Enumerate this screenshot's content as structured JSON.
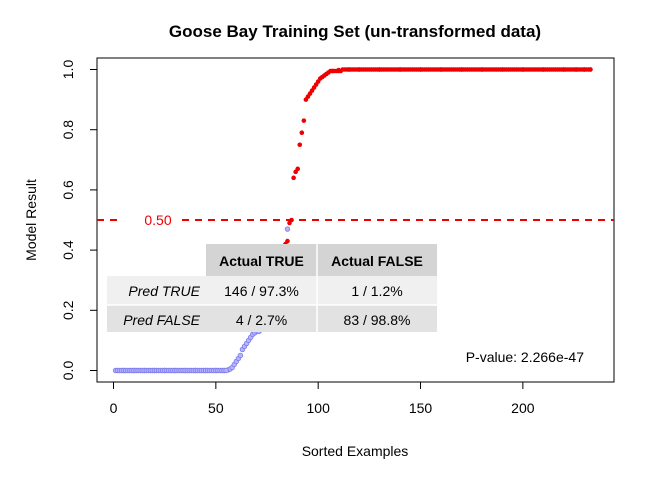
{
  "chart_data": {
    "type": "scatter",
    "title": "Goose Bay Training Set (un-transformed data)",
    "xlabel": "Sorted Examples",
    "ylabel": "Model Result",
    "xlim": [
      0,
      235
    ],
    "ylim": [
      0,
      1
    ],
    "x_ticks": [
      0,
      50,
      100,
      150,
      200
    ],
    "y_ticks": [
      0.0,
      0.2,
      0.4,
      0.6,
      0.8,
      1.0
    ],
    "y_tick_labels": [
      "0.0",
      "0.2",
      "0.4",
      "0.6",
      "0.8",
      "1.0"
    ],
    "threshold": {
      "value": 0.5,
      "label": "0.50",
      "color": "#ee0000"
    },
    "colors": {
      "false_class": "#7b7bee",
      "true_class": "#ee0000"
    },
    "grid": false,
    "legend": "none",
    "false_points": [
      [
        1,
        0
      ],
      [
        5,
        0
      ],
      [
        10,
        0
      ],
      [
        15,
        0
      ],
      [
        20,
        0
      ],
      [
        25,
        0
      ],
      [
        30,
        0
      ],
      [
        35,
        0
      ],
      [
        40,
        0
      ],
      [
        45,
        0
      ],
      [
        50,
        0
      ],
      [
        54,
        0
      ],
      [
        56,
        0.002
      ],
      [
        57,
        0.005
      ],
      [
        58,
        0.01
      ],
      [
        59,
        0.02
      ],
      [
        60,
        0.03
      ],
      [
        61,
        0.04
      ],
      [
        62,
        0.05
      ],
      [
        63,
        0.07
      ],
      [
        64,
        0.08
      ],
      [
        65,
        0.09
      ],
      [
        66,
        0.1
      ],
      [
        67,
        0.11
      ],
      [
        68,
        0.12
      ],
      [
        69,
        0.125
      ],
      [
        70,
        0.13
      ],
      [
        71,
        0.13
      ],
      [
        72,
        0.135
      ],
      [
        73,
        0.14
      ],
      [
        74,
        0.15
      ],
      [
        75,
        0.16
      ],
      [
        76,
        0.19
      ],
      [
        77,
        0.21
      ],
      [
        78,
        0.22
      ],
      [
        79,
        0.23
      ],
      [
        80,
        0.26
      ],
      [
        81,
        0.29
      ],
      [
        82,
        0.32
      ],
      [
        83,
        0.36
      ],
      [
        84,
        0.4
      ],
      [
        85,
        0.47
      ]
    ],
    "true_points": [
      [
        84,
        0.42
      ],
      [
        85,
        0.43
      ],
      [
        86,
        0.49
      ],
      [
        87,
        0.5
      ],
      [
        88,
        0.64
      ],
      [
        89,
        0.66
      ],
      [
        90,
        0.67
      ],
      [
        91,
        0.75
      ],
      [
        92,
        0.79
      ],
      [
        93,
        0.83
      ],
      [
        94,
        0.9
      ],
      [
        95,
        0.91
      ],
      [
        96,
        0.92
      ],
      [
        97,
        0.93
      ],
      [
        98,
        0.94
      ],
      [
        99,
        0.95
      ],
      [
        100,
        0.96
      ],
      [
        101,
        0.97
      ],
      [
        102,
        0.975
      ],
      [
        103,
        0.98
      ],
      [
        104,
        0.985
      ],
      [
        105,
        0.99
      ],
      [
        107,
        0.995
      ],
      [
        110,
        0.998
      ],
      [
        115,
        1.0
      ],
      [
        120,
        1.0
      ],
      [
        130,
        1.0
      ],
      [
        140,
        1.0
      ],
      [
        150,
        1.0
      ],
      [
        160,
        1.0
      ],
      [
        170,
        1.0
      ],
      [
        180,
        1.0
      ],
      [
        190,
        1.0
      ],
      [
        200,
        1.0
      ],
      [
        210,
        1.0
      ],
      [
        220,
        1.0
      ],
      [
        226,
        1.0
      ],
      [
        230,
        1.0
      ],
      [
        233,
        1.0
      ]
    ],
    "confusion_table": {
      "headers": [
        "",
        "Actual TRUE",
        "Actual FALSE"
      ],
      "rows": [
        {
          "label": "Pred TRUE",
          "cells": [
            "146 / 97.3%",
            "1 / 1.2%"
          ]
        },
        {
          "label": "Pred FALSE",
          "cells": [
            "4 / 2.7%",
            "83 / 98.8%"
          ]
        }
      ]
    },
    "pvalue_text": "P-value: 2.266e-47"
  }
}
